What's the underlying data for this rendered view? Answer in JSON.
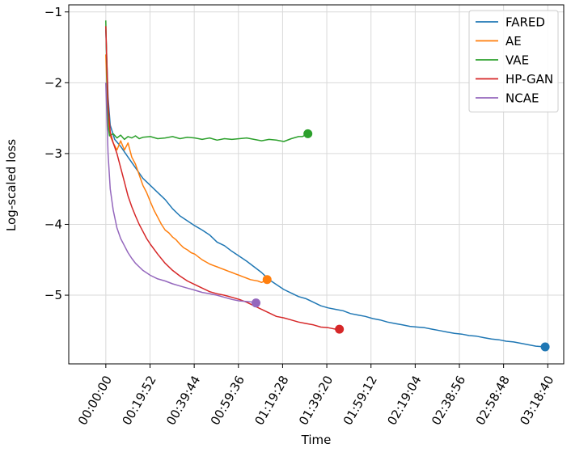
{
  "chart_data": {
    "type": "line",
    "xlabel": "Time",
    "ylabel": "Log-scaled loss",
    "x_unit": "seconds",
    "xlim": [
      -1000,
      12350
    ],
    "ylim": [
      -5.97,
      -0.9
    ],
    "x_ticks": [
      {
        "value": 0,
        "label": "00:00:00"
      },
      {
        "value": 1192,
        "label": "00:19:52"
      },
      {
        "value": 2384,
        "label": "00:39:44"
      },
      {
        "value": 3576,
        "label": "00:59:36"
      },
      {
        "value": 4768,
        "label": "01:19:28"
      },
      {
        "value": 5960,
        "label": "01:39:20"
      },
      {
        "value": 7152,
        "label": "01:59:12"
      },
      {
        "value": 8344,
        "label": "02:19:04"
      },
      {
        "value": 9536,
        "label": "02:38:56"
      },
      {
        "value": 10728,
        "label": "02:58:48"
      },
      {
        "value": 11920,
        "label": "03:18:40"
      }
    ],
    "y_ticks": [
      {
        "value": -1,
        "label": "−1"
      },
      {
        "value": -2,
        "label": "−2"
      },
      {
        "value": -3,
        "label": "−3"
      },
      {
        "value": -4,
        "label": "−4"
      },
      {
        "value": -5,
        "label": "−5"
      }
    ],
    "grid": true,
    "legend_position": "top-right",
    "series": [
      {
        "name": "FARED",
        "color": "#1f77b4",
        "end_marker": true,
        "points": [
          [
            0,
            -1.25
          ],
          [
            60,
            -2.2
          ],
          [
            120,
            -2.6
          ],
          [
            240,
            -2.8
          ],
          [
            400,
            -2.9
          ],
          [
            600,
            -3.05
          ],
          [
            800,
            -3.2
          ],
          [
            1000,
            -3.35
          ],
          [
            1200,
            -3.45
          ],
          [
            1400,
            -3.55
          ],
          [
            1600,
            -3.65
          ],
          [
            1800,
            -3.78
          ],
          [
            2000,
            -3.88
          ],
          [
            2200,
            -3.95
          ],
          [
            2400,
            -4.02
          ],
          [
            2600,
            -4.08
          ],
          [
            2800,
            -4.15
          ],
          [
            3000,
            -4.25
          ],
          [
            3200,
            -4.3
          ],
          [
            3400,
            -4.38
          ],
          [
            3600,
            -4.45
          ],
          [
            3800,
            -4.52
          ],
          [
            4000,
            -4.6
          ],
          [
            4200,
            -4.68
          ],
          [
            4400,
            -4.78
          ],
          [
            4600,
            -4.85
          ],
          [
            4800,
            -4.92
          ],
          [
            5000,
            -4.97
          ],
          [
            5200,
            -5.02
          ],
          [
            5400,
            -5.05
          ],
          [
            5600,
            -5.1
          ],
          [
            5800,
            -5.15
          ],
          [
            6000,
            -5.18
          ],
          [
            6200,
            -5.2
          ],
          [
            6400,
            -5.22
          ],
          [
            6600,
            -5.26
          ],
          [
            6800,
            -5.28
          ],
          [
            7000,
            -5.3
          ],
          [
            7200,
            -5.33
          ],
          [
            7400,
            -5.35
          ],
          [
            7600,
            -5.38
          ],
          [
            7800,
            -5.4
          ],
          [
            8000,
            -5.42
          ],
          [
            8200,
            -5.44
          ],
          [
            8400,
            -5.45
          ],
          [
            8600,
            -5.46
          ],
          [
            8800,
            -5.48
          ],
          [
            9000,
            -5.5
          ],
          [
            9200,
            -5.52
          ],
          [
            9400,
            -5.54
          ],
          [
            9600,
            -5.55
          ],
          [
            9800,
            -5.57
          ],
          [
            10000,
            -5.58
          ],
          [
            10200,
            -5.6
          ],
          [
            10400,
            -5.62
          ],
          [
            10600,
            -5.63
          ],
          [
            10800,
            -5.65
          ],
          [
            11000,
            -5.66
          ],
          [
            11200,
            -5.68
          ],
          [
            11400,
            -5.7
          ],
          [
            11600,
            -5.72
          ],
          [
            11850,
            -5.73
          ]
        ]
      },
      {
        "name": "AE",
        "color": "#ff7f0e",
        "end_marker": true,
        "points": [
          [
            0,
            -1.6
          ],
          [
            60,
            -2.5
          ],
          [
            120,
            -2.75
          ],
          [
            200,
            -2.85
          ],
          [
            300,
            -2.95
          ],
          [
            400,
            -2.82
          ],
          [
            500,
            -2.95
          ],
          [
            600,
            -2.85
          ],
          [
            700,
            -3.05
          ],
          [
            800,
            -3.15
          ],
          [
            900,
            -3.3
          ],
          [
            1000,
            -3.45
          ],
          [
            1100,
            -3.55
          ],
          [
            1200,
            -3.68
          ],
          [
            1300,
            -3.8
          ],
          [
            1400,
            -3.9
          ],
          [
            1500,
            -4.0
          ],
          [
            1600,
            -4.08
          ],
          [
            1700,
            -4.12
          ],
          [
            1800,
            -4.18
          ],
          [
            1900,
            -4.22
          ],
          [
            2000,
            -4.28
          ],
          [
            2100,
            -4.33
          ],
          [
            2200,
            -4.36
          ],
          [
            2300,
            -4.4
          ],
          [
            2400,
            -4.42
          ],
          [
            2500,
            -4.46
          ],
          [
            2600,
            -4.5
          ],
          [
            2700,
            -4.53
          ],
          [
            2800,
            -4.56
          ],
          [
            2900,
            -4.58
          ],
          [
            3000,
            -4.6
          ],
          [
            3100,
            -4.62
          ],
          [
            3200,
            -4.64
          ],
          [
            3300,
            -4.66
          ],
          [
            3400,
            -4.68
          ],
          [
            3500,
            -4.7
          ],
          [
            3600,
            -4.72
          ],
          [
            3700,
            -4.74
          ],
          [
            3800,
            -4.76
          ],
          [
            3900,
            -4.78
          ],
          [
            4000,
            -4.79
          ],
          [
            4100,
            -4.8
          ],
          [
            4200,
            -4.82
          ],
          [
            4350,
            -4.78
          ]
        ]
      },
      {
        "name": "VAE",
        "color": "#2ca02c",
        "end_marker": true,
        "points": [
          [
            0,
            -1.12
          ],
          [
            30,
            -1.9
          ],
          [
            60,
            -2.6
          ],
          [
            100,
            -2.75
          ],
          [
            200,
            -2.72
          ],
          [
            300,
            -2.78
          ],
          [
            400,
            -2.74
          ],
          [
            500,
            -2.8
          ],
          [
            600,
            -2.76
          ],
          [
            700,
            -2.78
          ],
          [
            800,
            -2.75
          ],
          [
            900,
            -2.79
          ],
          [
            1000,
            -2.77
          ],
          [
            1200,
            -2.76
          ],
          [
            1400,
            -2.79
          ],
          [
            1600,
            -2.78
          ],
          [
            1800,
            -2.76
          ],
          [
            2000,
            -2.79
          ],
          [
            2200,
            -2.77
          ],
          [
            2400,
            -2.78
          ],
          [
            2600,
            -2.8
          ],
          [
            2800,
            -2.78
          ],
          [
            3000,
            -2.81
          ],
          [
            3200,
            -2.79
          ],
          [
            3400,
            -2.8
          ],
          [
            3600,
            -2.79
          ],
          [
            3800,
            -2.78
          ],
          [
            4000,
            -2.8
          ],
          [
            4200,
            -2.82
          ],
          [
            4400,
            -2.8
          ],
          [
            4600,
            -2.81
          ],
          [
            4800,
            -2.83
          ],
          [
            5000,
            -2.79
          ],
          [
            5200,
            -2.76
          ],
          [
            5300,
            -2.76
          ],
          [
            5450,
            -2.72
          ]
        ]
      },
      {
        "name": "HP-GAN",
        "color": "#d62728",
        "end_marker": true,
        "points": [
          [
            0,
            -1.2
          ],
          [
            60,
            -2.3
          ],
          [
            120,
            -2.7
          ],
          [
            200,
            -2.85
          ],
          [
            300,
            -3.0
          ],
          [
            400,
            -3.2
          ],
          [
            500,
            -3.4
          ],
          [
            600,
            -3.6
          ],
          [
            700,
            -3.75
          ],
          [
            800,
            -3.88
          ],
          [
            900,
            -4.0
          ],
          [
            1000,
            -4.1
          ],
          [
            1100,
            -4.2
          ],
          [
            1200,
            -4.28
          ],
          [
            1400,
            -4.42
          ],
          [
            1600,
            -4.55
          ],
          [
            1800,
            -4.65
          ],
          [
            2000,
            -4.73
          ],
          [
            2200,
            -4.8
          ],
          [
            2400,
            -4.85
          ],
          [
            2600,
            -4.9
          ],
          [
            2800,
            -4.95
          ],
          [
            3000,
            -4.98
          ],
          [
            3200,
            -5.0
          ],
          [
            3400,
            -5.03
          ],
          [
            3600,
            -5.06
          ],
          [
            3800,
            -5.1
          ],
          [
            4000,
            -5.15
          ],
          [
            4200,
            -5.2
          ],
          [
            4400,
            -5.25
          ],
          [
            4600,
            -5.3
          ],
          [
            4800,
            -5.32
          ],
          [
            5000,
            -5.35
          ],
          [
            5200,
            -5.38
          ],
          [
            5400,
            -5.4
          ],
          [
            5600,
            -5.42
          ],
          [
            5800,
            -5.45
          ],
          [
            6000,
            -5.46
          ],
          [
            6200,
            -5.48
          ],
          [
            6300,
            -5.48
          ]
        ]
      },
      {
        "name": "NCAE",
        "color": "#9467bd",
        "end_marker": true,
        "points": [
          [
            0,
            -2.0
          ],
          [
            60,
            -3.0
          ],
          [
            120,
            -3.5
          ],
          [
            200,
            -3.8
          ],
          [
            300,
            -4.05
          ],
          [
            400,
            -4.2
          ],
          [
            500,
            -4.3
          ],
          [
            600,
            -4.4
          ],
          [
            700,
            -4.48
          ],
          [
            800,
            -4.55
          ],
          [
            900,
            -4.6
          ],
          [
            1000,
            -4.65
          ],
          [
            1200,
            -4.72
          ],
          [
            1400,
            -4.77
          ],
          [
            1600,
            -4.8
          ],
          [
            1800,
            -4.84
          ],
          [
            2000,
            -4.87
          ],
          [
            2200,
            -4.9
          ],
          [
            2400,
            -4.93
          ],
          [
            2600,
            -4.96
          ],
          [
            2800,
            -4.98
          ],
          [
            3000,
            -5.0
          ],
          [
            3200,
            -5.03
          ],
          [
            3400,
            -5.06
          ],
          [
            3600,
            -5.08
          ],
          [
            3800,
            -5.09
          ],
          [
            4000,
            -5.1
          ],
          [
            4050,
            -5.11
          ]
        ]
      }
    ]
  }
}
